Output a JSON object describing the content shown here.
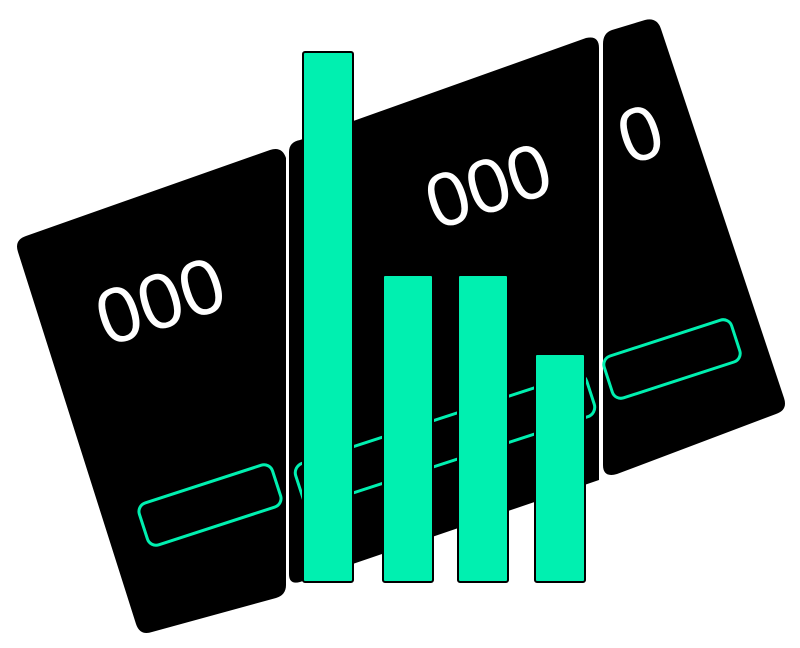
{
  "colors": {
    "background": "#ffffff",
    "card": "#000000",
    "accent": "#00f0b0",
    "digits": "#ffffff"
  },
  "cards": [
    {
      "digits": "000",
      "has_outlined_slot": true
    },
    {
      "digits": "000",
      "has_outlined_slot": true
    },
    {
      "digits": "0",
      "has_outlined_slot": true
    }
  ],
  "bars": {
    "count": 4,
    "relative_levels": [
      1.0,
      0.58,
      0.58,
      0.43
    ]
  }
}
